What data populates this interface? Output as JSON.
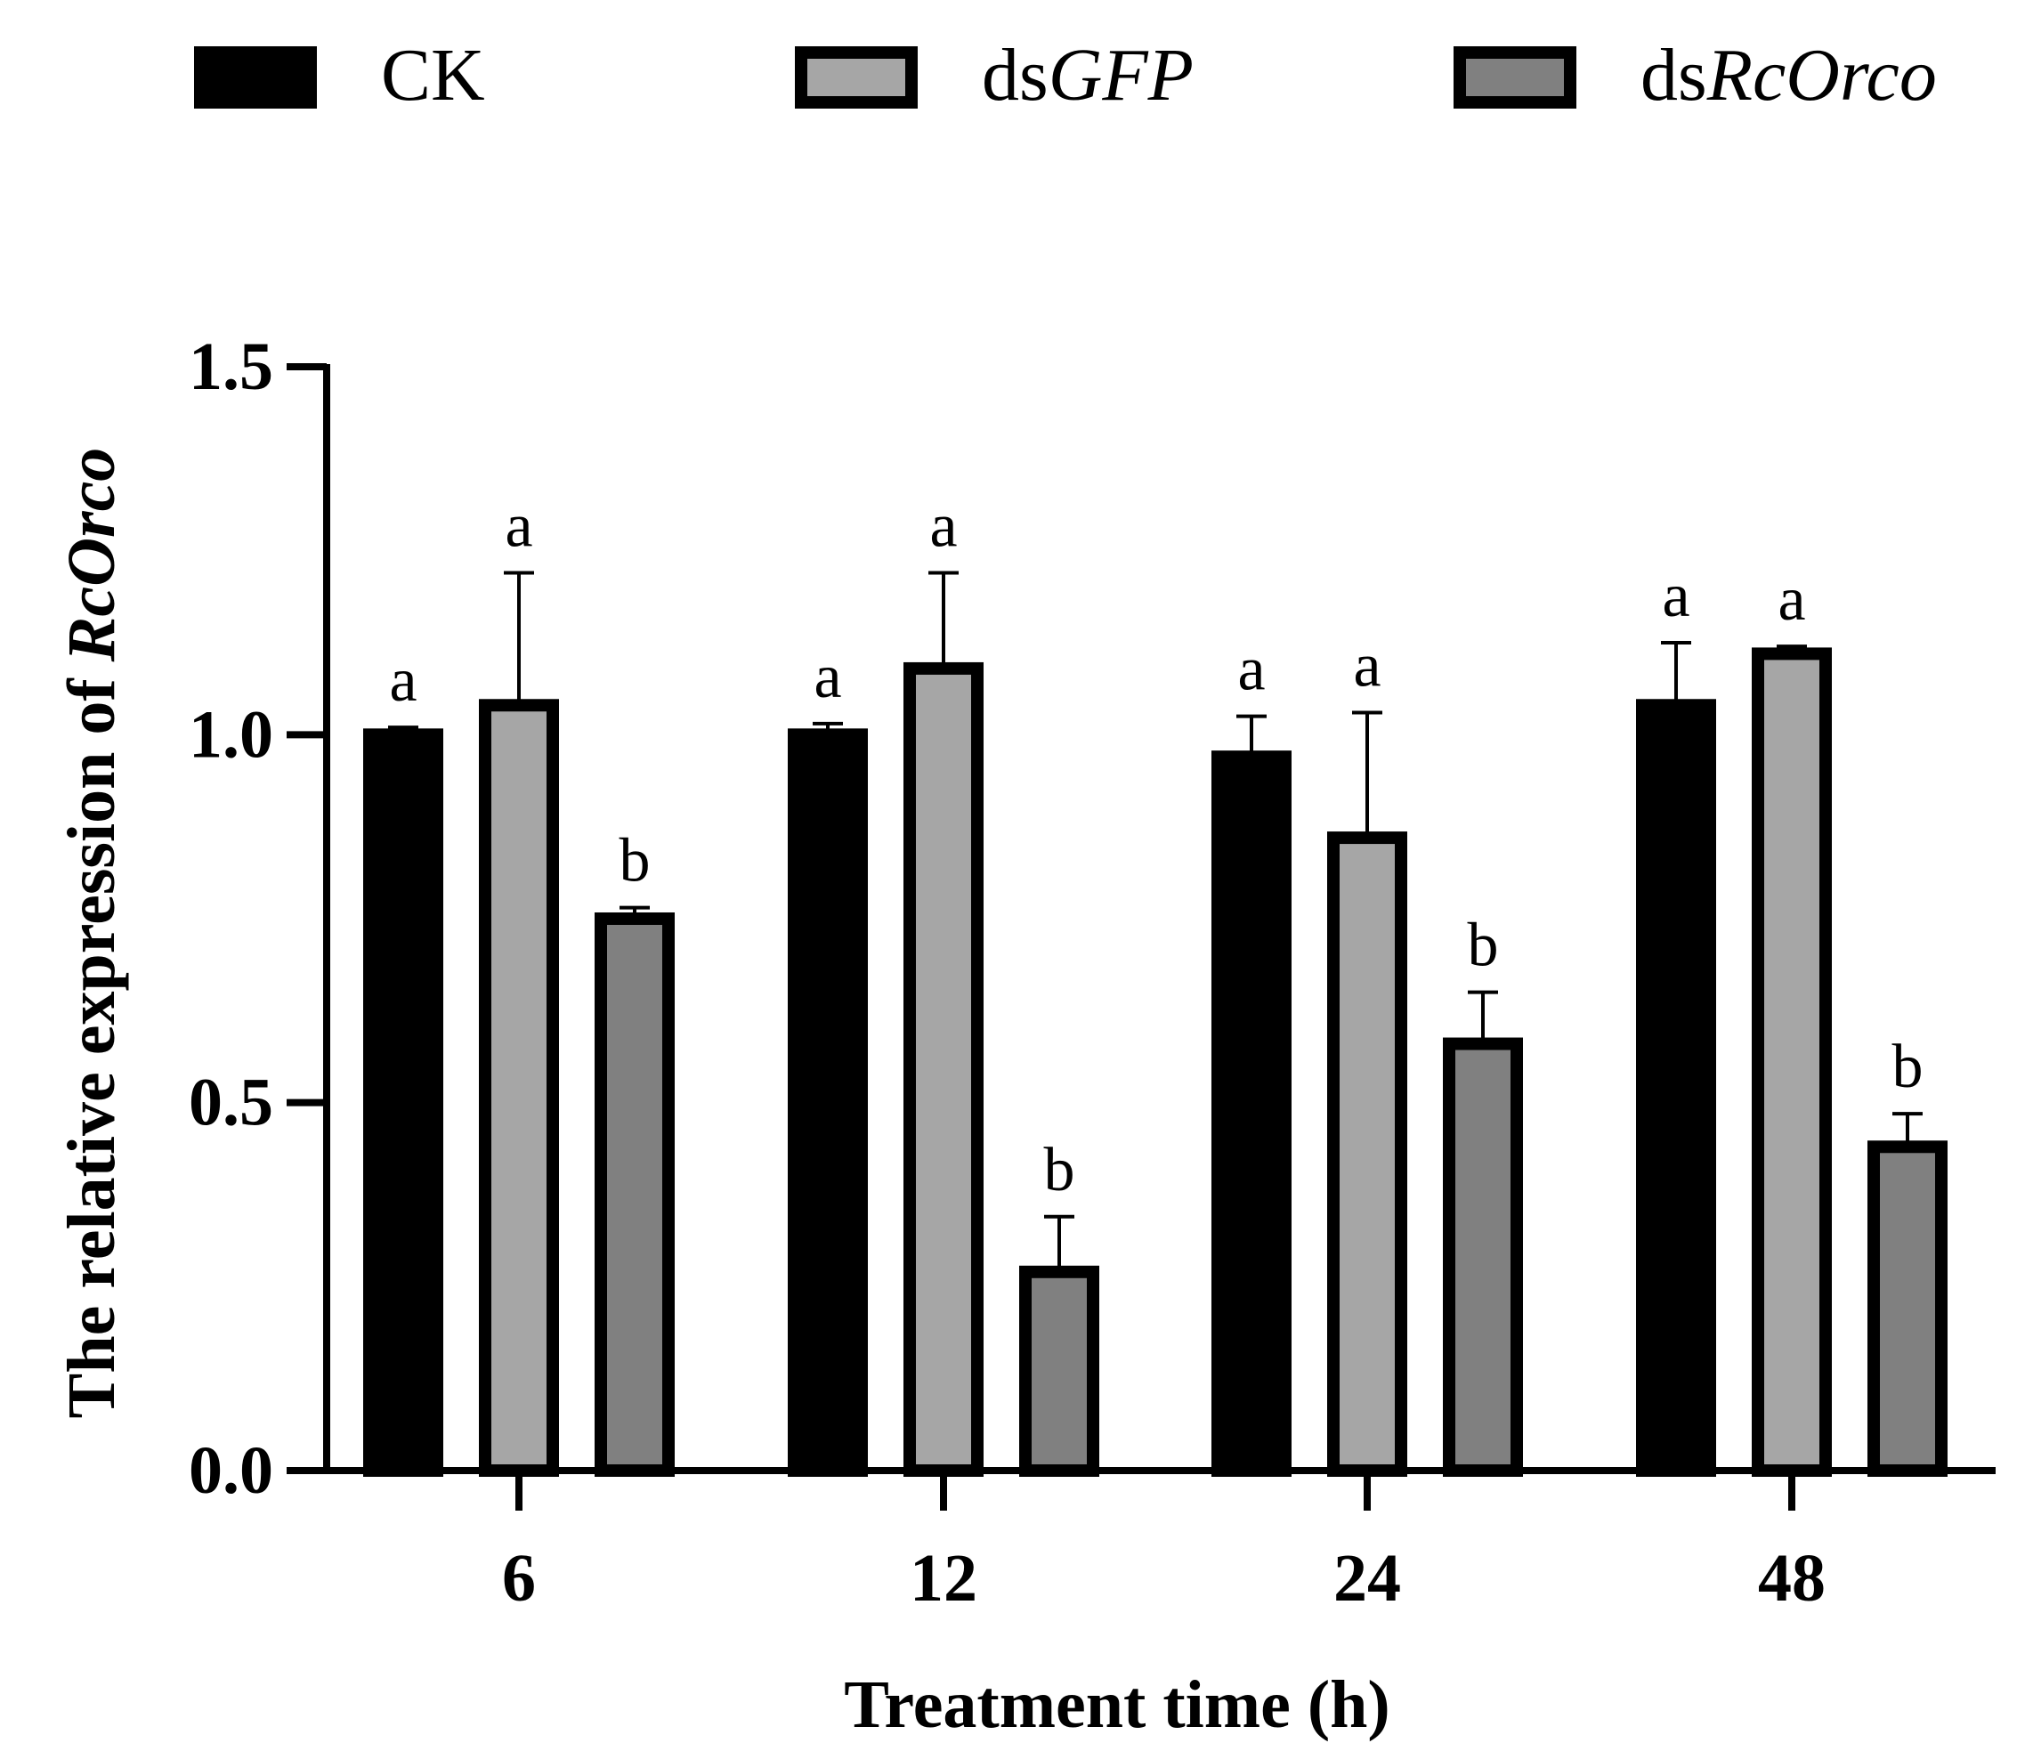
{
  "chart_data": {
    "type": "bar",
    "categories": [
      "6",
      "12",
      "24",
      "48"
    ],
    "xlabel": "Treatment time (h)",
    "ylabel": {
      "prefix": "The relative expression of ",
      "gene": "RcOrco"
    },
    "ylim": [
      0,
      1.5
    ],
    "yticks": [
      "0.0",
      "0.5",
      "1.0",
      "1.5"
    ],
    "legend_position": "top",
    "series": [
      {
        "name": "CK",
        "name_prefix": "CK",
        "name_italic": "",
        "color": "#000000",
        "values": [
          1.0,
          1.0,
          0.97,
          1.04
        ],
        "errors": [
          0.01,
          0.015,
          0.055,
          0.085
        ],
        "labels": [
          "a",
          "a",
          "a",
          "a"
        ]
      },
      {
        "name": "dsGFP",
        "name_prefix": "ds",
        "name_italic": "GFP",
        "color": "#a6a6a6",
        "values": [
          1.04,
          1.09,
          0.86,
          1.11
        ],
        "errors": [
          0.18,
          0.13,
          0.17,
          0.01
        ],
        "labels": [
          "a",
          "a",
          "a",
          "a"
        ]
      },
      {
        "name": "dsRcOrco",
        "name_prefix": "ds",
        "name_italic": "RcOrco",
        "color": "#808080",
        "values": [
          0.75,
          0.27,
          0.58,
          0.44
        ],
        "errors": [
          0.015,
          0.075,
          0.07,
          0.045
        ],
        "labels": [
          "b",
          "b",
          "b",
          "b"
        ]
      }
    ]
  }
}
